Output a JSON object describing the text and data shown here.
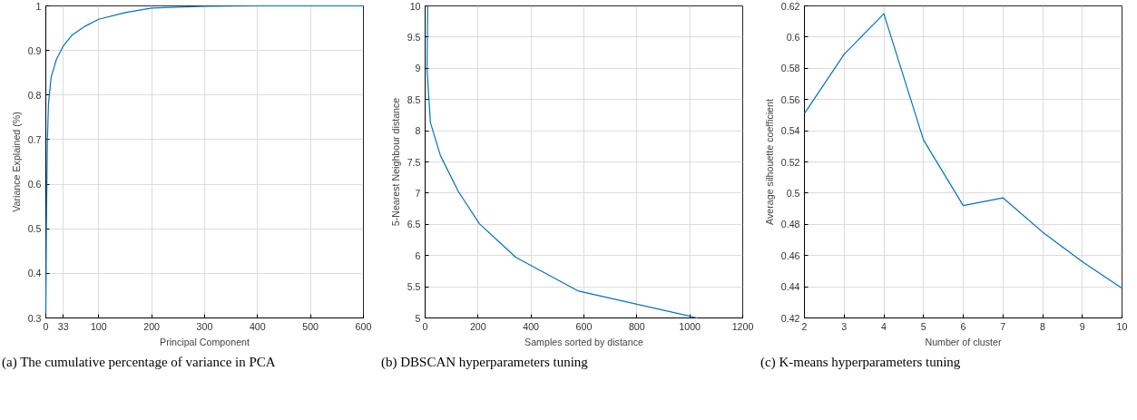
{
  "chart_data": [
    {
      "type": "line",
      "xlabel": "Principal Component",
      "ylabel": "Variance Explained (%)",
      "x": [
        0,
        1,
        2,
        3,
        5,
        10,
        20,
        33,
        50,
        75,
        100,
        150,
        200,
        300,
        400,
        600
      ],
      "series": [
        {
          "color": "#0072bd",
          "values": [
            0.31,
            0.5,
            0.6,
            0.7,
            0.78,
            0.84,
            0.88,
            0.91,
            0.935,
            0.955,
            0.97,
            0.985,
            0.995,
            0.999,
            1,
            1
          ]
        }
      ],
      "xlim": [
        0,
        600
      ],
      "xticks": [
        0,
        33,
        100,
        200,
        300,
        400,
        500,
        600
      ],
      "ylim": [
        0.3,
        1
      ],
      "yticks": [
        0.3,
        0.4,
        0.5,
        0.6,
        0.7,
        0.8,
        0.9,
        1
      ],
      "grid": true,
      "annotations": [
        "(a) The cumulative percentage of variance in PCA"
      ]
    },
    {
      "type": "line",
      "xlabel": "Samples sorted by distance",
      "ylabel": "5-Nearest Neighbour distance",
      "x": [
        10,
        7,
        20,
        58,
        125,
        205,
        343,
        580,
        1029
      ],
      "series": [
        {
          "color": "#0072bd",
          "values": [
            10,
            9.0,
            8.13,
            7.6,
            7.03,
            6.51,
            5.97,
            5.43,
            5.0
          ]
        }
      ],
      "xlim": [
        0,
        1200
      ],
      "xticks": [
        0,
        200,
        400,
        600,
        800,
        1000,
        1200
      ],
      "ylim": [
        5,
        10
      ],
      "yticks": [
        5,
        5.5,
        6,
        6.5,
        7,
        7.5,
        8,
        8.5,
        9,
        9.5,
        10
      ],
      "grid": true,
      "annotations": [
        "(b) DBSCAN hyperparameters tuning"
      ]
    },
    {
      "type": "line",
      "xlabel": "Number of cluster",
      "ylabel": "Average silhouette coefficient",
      "x": [
        2,
        3,
        4,
        5,
        6,
        7,
        8,
        9,
        10
      ],
      "series": [
        {
          "color": "#0072bd",
          "values": [
            0.551,
            0.589,
            0.615,
            0.534,
            0.492,
            0.497,
            0.475,
            0.456,
            0.439
          ]
        }
      ],
      "xlim": [
        2,
        10
      ],
      "xticks": [
        2,
        3,
        4,
        5,
        6,
        7,
        8,
        9,
        10
      ],
      "ylim": [
        0.42,
        0.62
      ],
      "yticks": [
        0.42,
        0.44,
        0.46,
        0.48,
        0.5,
        0.52,
        0.54,
        0.56,
        0.58,
        0.6,
        0.62
      ],
      "grid": true,
      "annotations": [
        "(c) K-means hyperparameters tuning"
      ]
    }
  ]
}
